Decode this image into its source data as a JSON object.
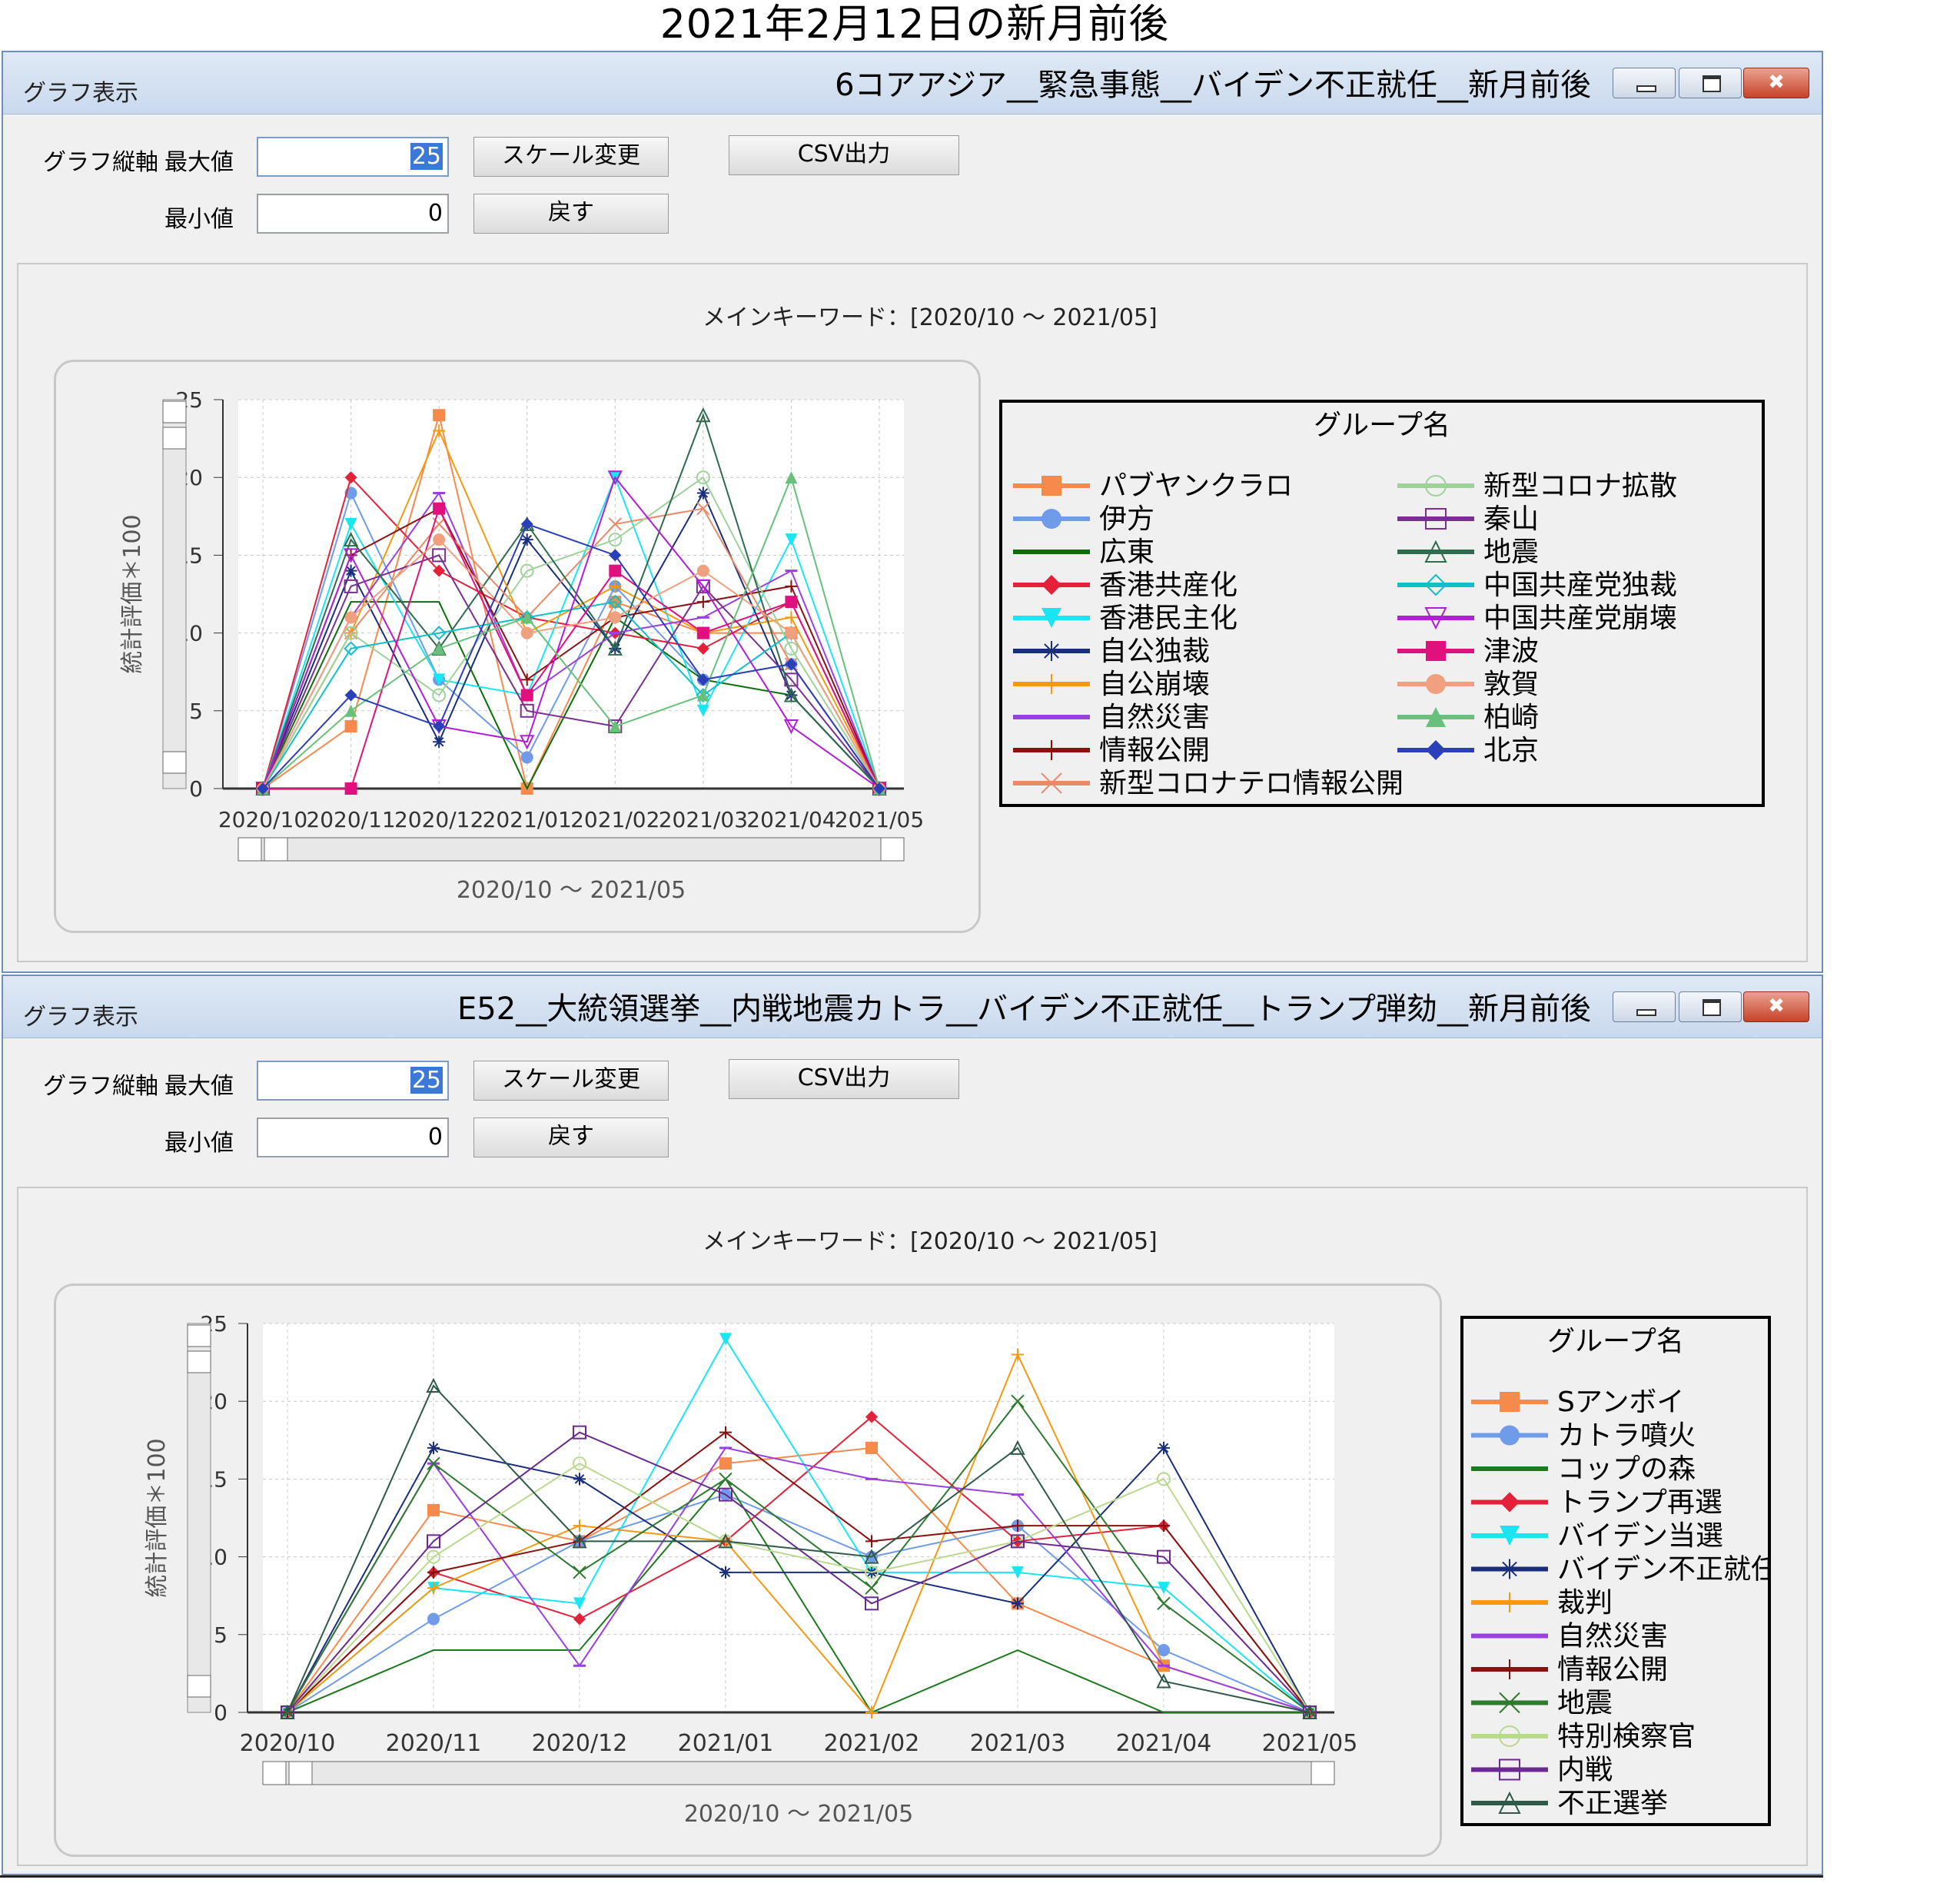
{
  "page_title": "2021年2月12日の新月前後",
  "windows": [
    {
      "app_name": "グラフ表示",
      "title": "6コアアジア__緊急事態__バイデン不正就任__新月前後",
      "controls": {
        "axis_label": "グラフ縦軸",
        "max_label": "最大値",
        "max_value": "25",
        "min_label": "最小値",
        "min_value": "0",
        "scale_button": "スケール変更",
        "reset_button": "戻す",
        "csv_button": "CSV出力"
      },
      "main_keyword": "メインキーワード：[2020/10 〜 2021/05]",
      "x_caption": "2020/10 〜 2021/05",
      "legend_title": "グループ名"
    },
    {
      "app_name": "グラフ表示",
      "title": "E52__大統領選挙__内戦地震カトラ__バイデン不正就任__トランプ弾劾__新月前後",
      "controls": {
        "axis_label": "グラフ縦軸",
        "max_label": "最大値",
        "max_value": "25",
        "min_label": "最小値",
        "min_value": "0",
        "scale_button": "スケール変更",
        "reset_button": "戻す",
        "csv_button": "CSV出力"
      },
      "main_keyword": "メインキーワード：[2020/10 〜 2021/05]",
      "x_caption": "2020/10 〜 2021/05",
      "legend_title": "グループ名"
    }
  ],
  "chart_data": [
    {
      "type": "line",
      "ylabel": "統計評価＊100",
      "xlabel": "2020/10 〜 2021/05",
      "ylim": [
        0,
        25
      ],
      "yticks": [
        0,
        5,
        10,
        15,
        20,
        25
      ],
      "grid": true,
      "legend_position": "right",
      "categories": [
        "2020/10",
        "2020/11",
        "2020/12",
        "2021/01",
        "2021/02",
        "2021/03",
        "2021/04",
        "2021/05"
      ],
      "series": [
        {
          "name": "パブヤンクラロ",
          "color": "#f58a4c",
          "marker": "square",
          "values": [
            0,
            4,
            24,
            0,
            12,
            10,
            10,
            0
          ]
        },
        {
          "name": "伊方",
          "color": "#6f9be8",
          "marker": "circle",
          "values": [
            0,
            19,
            7,
            2,
            13,
            7,
            8,
            0
          ]
        },
        {
          "name": "広東",
          "color": "#0a6e0a",
          "marker": "none",
          "values": [
            0,
            12,
            12,
            0,
            11,
            7,
            6,
            0
          ]
        },
        {
          "name": "香港共産化",
          "color": "#e3223a",
          "marker": "diamond",
          "values": [
            0,
            20,
            14,
            11,
            10,
            9,
            12,
            0
          ]
        },
        {
          "name": "香港民主化",
          "color": "#19e6f2",
          "marker": "triangle-down",
          "values": [
            0,
            17,
            7,
            6,
            20,
            5,
            16,
            0
          ]
        },
        {
          "name": "自公独裁",
          "color": "#1a2e7c",
          "marker": "asterisk",
          "values": [
            0,
            14,
            3,
            16,
            9,
            19,
            6,
            0
          ]
        },
        {
          "name": "自公崩壊",
          "color": "#f39a12",
          "marker": "plus",
          "values": [
            0,
            10,
            23,
            10,
            13,
            10,
            11,
            0
          ]
        },
        {
          "name": "自然災害",
          "color": "#9b3fe0",
          "marker": "dash",
          "values": [
            0,
            11,
            19,
            6,
            10,
            11,
            14,
            0
          ]
        },
        {
          "name": "情報公開",
          "color": "#8b1111",
          "marker": "plus",
          "values": [
            0,
            15,
            18,
            7,
            11,
            12,
            13,
            0
          ]
        },
        {
          "name": "新型コロナテロ情報公開",
          "color": "#e98a6a",
          "marker": "x",
          "values": [
            0,
            10,
            17,
            11,
            17,
            18,
            8,
            0
          ]
        },
        {
          "name": "新型コロナ拡散",
          "color": "#9ed29a",
          "marker": "circle-open",
          "values": [
            0,
            10,
            6,
            14,
            16,
            20,
            9,
            0
          ]
        },
        {
          "name": "秦山",
          "color": "#7a2f8f",
          "marker": "square-open",
          "values": [
            0,
            13,
            15,
            5,
            4,
            13,
            7,
            0
          ]
        },
        {
          "name": "地震",
          "color": "#2f6b4f",
          "marker": "triangle-open",
          "values": [
            0,
            16,
            9,
            17,
            9,
            24,
            6,
            0
          ]
        },
        {
          "name": "中国共産党独裁",
          "color": "#10c0c8",
          "marker": "diamond-open",
          "values": [
            0,
            9,
            10,
            11,
            12,
            6,
            10,
            0
          ]
        },
        {
          "name": "中国共産党崩壊",
          "color": "#b01fd3",
          "marker": "triangle-down-open",
          "values": [
            0,
            15,
            4,
            3,
            20,
            13,
            4,
            0
          ]
        },
        {
          "name": "津波",
          "color": "#e0117f",
          "marker": "square",
          "values": [
            0,
            0,
            18,
            6,
            14,
            10,
            12,
            0
          ]
        },
        {
          "name": "敦賀",
          "color": "#f0a07e",
          "marker": "circle",
          "values": [
            0,
            11,
            16,
            10,
            11,
            14,
            10,
            0
          ]
        },
        {
          "name": "柏崎",
          "color": "#67c17a",
          "marker": "triangle",
          "values": [
            0,
            5,
            9,
            11,
            4,
            6,
            20,
            0
          ]
        },
        {
          "name": "北京",
          "color": "#2b3fb8",
          "marker": "diamond",
          "values": [
            0,
            6,
            4,
            17,
            15,
            7,
            8,
            0
          ]
        }
      ]
    },
    {
      "type": "line",
      "ylabel": "統計評価＊100",
      "xlabel": "2020/10 〜 2021/05",
      "ylim": [
        0,
        25
      ],
      "yticks": [
        0,
        5,
        10,
        15,
        20,
        25
      ],
      "grid": true,
      "legend_position": "right",
      "categories": [
        "2020/10",
        "2020/11",
        "2020/12",
        "2021/01",
        "2021/02",
        "2021/03",
        "2021/04",
        "2021/05"
      ],
      "series": [
        {
          "name": "Sアンボイ",
          "color": "#f58a4c",
          "marker": "square",
          "values": [
            0,
            13,
            11,
            16,
            17,
            7,
            3,
            0
          ]
        },
        {
          "name": "カトラ噴火",
          "color": "#6f9be8",
          "marker": "circle",
          "values": [
            0,
            6,
            11,
            14,
            10,
            12,
            4,
            0
          ]
        },
        {
          "name": "コップの森",
          "color": "#1d7a1d",
          "marker": "none",
          "values": [
            0,
            4,
            4,
            15,
            0,
            4,
            0,
            0
          ]
        },
        {
          "name": "トランプ再選",
          "color": "#e3223a",
          "marker": "diamond",
          "values": [
            0,
            9,
            6,
            11,
            19,
            11,
            12,
            0
          ]
        },
        {
          "name": "バイデン当選",
          "color": "#19e6f2",
          "marker": "triangle-down",
          "values": [
            0,
            8,
            7,
            24,
            9,
            9,
            8,
            0
          ]
        },
        {
          "name": "バイデン不正就任",
          "color": "#1a2e7c",
          "marker": "asterisk",
          "values": [
            0,
            17,
            15,
            9,
            9,
            7,
            17,
            0
          ]
        },
        {
          "name": "裁判",
          "color": "#f39a12",
          "marker": "plus",
          "values": [
            0,
            8,
            12,
            11,
            0,
            23,
            3,
            0
          ]
        },
        {
          "name": "自然災害",
          "color": "#9b3fe0",
          "marker": "dash",
          "values": [
            0,
            16,
            3,
            17,
            15,
            14,
            3,
            0
          ]
        },
        {
          "name": "情報公開",
          "color": "#8b1111",
          "marker": "plus",
          "values": [
            0,
            9,
            11,
            18,
            11,
            12,
            12,
            0
          ]
        },
        {
          "name": "地震",
          "color": "#2f7a2f",
          "marker": "x",
          "values": [
            0,
            16,
            9,
            15,
            8,
            20,
            7,
            0
          ]
        },
        {
          "name": "特別検察官",
          "color": "#b9d98e",
          "marker": "circle-open",
          "values": [
            0,
            10,
            16,
            11,
            9,
            11,
            15,
            0
          ]
        },
        {
          "name": "内戦",
          "color": "#6b2a8f",
          "marker": "square-open",
          "values": [
            0,
            11,
            18,
            14,
            7,
            11,
            10,
            0
          ]
        },
        {
          "name": "不正選挙",
          "color": "#2f5a4a",
          "marker": "triangle-open",
          "values": [
            0,
            21,
            11,
            11,
            10,
            17,
            2,
            0
          ]
        }
      ]
    }
  ]
}
